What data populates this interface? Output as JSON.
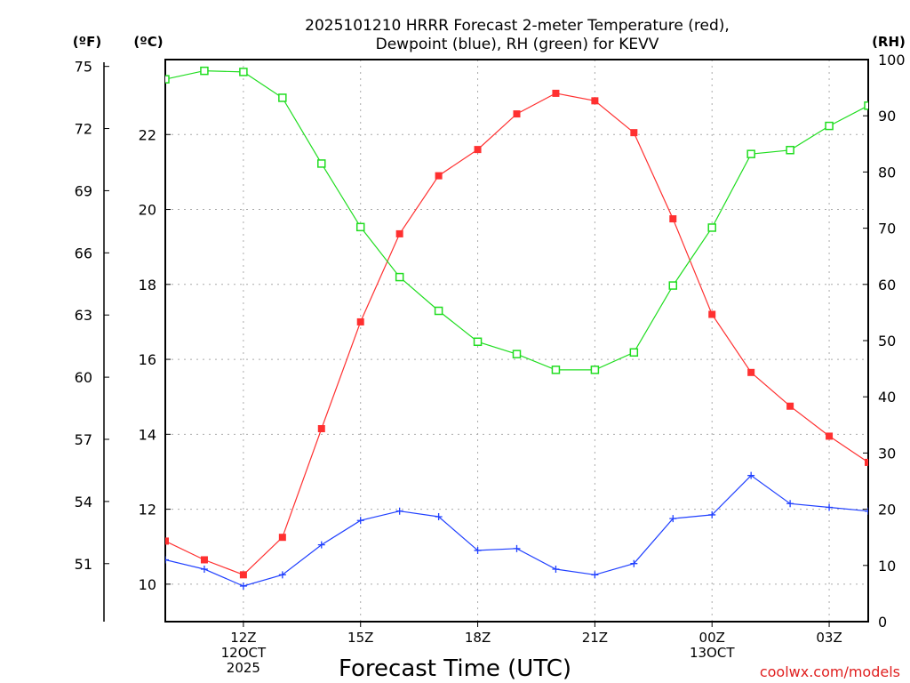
{
  "chart_data": {
    "type": "line",
    "title_lines": [
      "2025101210 HRRR Forecast 2-meter Temperature (red),",
      "Dewpoint (blue), RH (green) for KEVV"
    ],
    "xlabel": "Forecast Time (UTC)",
    "credit": "coolwx.com/models",
    "units": {
      "fahrenheit": "(ºF)",
      "celsius": "(ºC)",
      "rh": "(RH)"
    },
    "hours": [
      10,
      11,
      12,
      13,
      14,
      15,
      16,
      17,
      18,
      19,
      20,
      21,
      22,
      23,
      24,
      25,
      26,
      27,
      28
    ],
    "x_range": [
      10,
      28
    ],
    "x_ticks": [
      {
        "hour": 12,
        "lines": [
          "12Z",
          "12OCT",
          "2025"
        ]
      },
      {
        "hour": 15,
        "lines": [
          "15Z"
        ]
      },
      {
        "hour": 18,
        "lines": [
          "18Z"
        ]
      },
      {
        "hour": 21,
        "lines": [
          "21Z"
        ]
      },
      {
        "hour": 24,
        "lines": [
          "00Z",
          "13OCT"
        ]
      },
      {
        "hour": 27,
        "lines": [
          "03Z"
        ]
      }
    ],
    "celsius_axis": {
      "range": [
        9,
        24
      ],
      "ticks": [
        "10",
        "12",
        "14",
        "16",
        "18",
        "20",
        "22"
      ]
    },
    "fahrenheit_axis": {
      "range": [
        48.2,
        75.2
      ],
      "ticks": [
        "51",
        "54",
        "57",
        "60",
        "63",
        "66",
        "69",
        "72",
        "75"
      ]
    },
    "rh_axis": {
      "range": [
        0,
        100
      ],
      "ticks": [
        "0",
        "10",
        "20",
        "30",
        "40",
        "50",
        "60",
        "70",
        "80",
        "90",
        "100"
      ]
    },
    "series": [
      {
        "name": "Temperature",
        "axis": "celsius",
        "color": "#ff3030",
        "marker": "filled-square",
        "values": [
          11.15,
          10.65,
          10.25,
          11.25,
          14.15,
          17.0,
          19.35,
          20.9,
          21.6,
          22.55,
          23.1,
          22.9,
          22.05,
          19.75,
          17.2,
          15.65,
          14.75,
          13.95,
          13.25
        ]
      },
      {
        "name": "Dewpoint",
        "axis": "celsius",
        "color": "#2040ff",
        "marker": "plus",
        "values": [
          10.65,
          10.4,
          9.95,
          10.25,
          11.05,
          11.7,
          11.95,
          11.8,
          10.9,
          10.95,
          10.4,
          10.25,
          10.55,
          11.75,
          11.85,
          12.9,
          12.15,
          12.05,
          11.95
        ]
      },
      {
        "name": "RH",
        "axis": "rh",
        "color": "#20dd20",
        "marker": "open-square",
        "values": [
          96.5,
          98.0,
          97.8,
          93.2,
          81.5,
          70.2,
          61.3,
          55.3,
          49.8,
          47.6,
          44.8,
          44.8,
          47.9,
          59.8,
          70.1,
          83.2,
          83.9,
          88.2,
          91.8
        ]
      }
    ]
  }
}
